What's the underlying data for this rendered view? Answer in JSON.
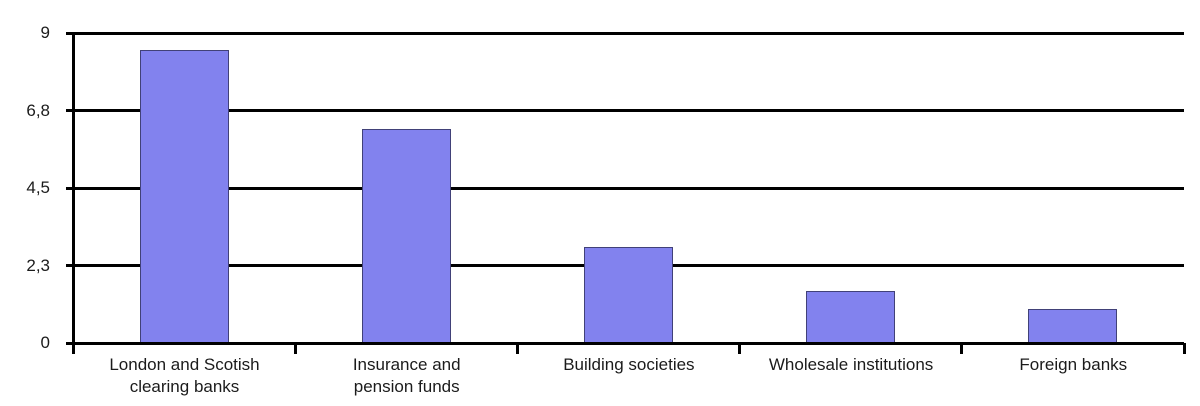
{
  "chart_data": {
    "type": "bar",
    "title": "",
    "xlabel": "",
    "ylabel": "",
    "categories": [
      "London and Scotish\nclearing banks",
      "Insurance and\npension funds",
      "Building societies",
      "Wholesale institutions",
      "Foreign banks"
    ],
    "values": [
      8.5,
      6.2,
      2.8,
      1.5,
      1.0
    ],
    "ylim": [
      0,
      9
    ],
    "ytick_labels": [
      "0",
      "2,3",
      "4,5",
      "6,8",
      "9"
    ],
    "ytick_values": [
      0,
      2.25,
      4.5,
      6.75,
      9
    ],
    "grid": true,
    "legend": "none",
    "bar_color": "#8282ee",
    "bar_border_color": "#414178",
    "axis_color": "#000000",
    "background_color": "#ffffff"
  }
}
